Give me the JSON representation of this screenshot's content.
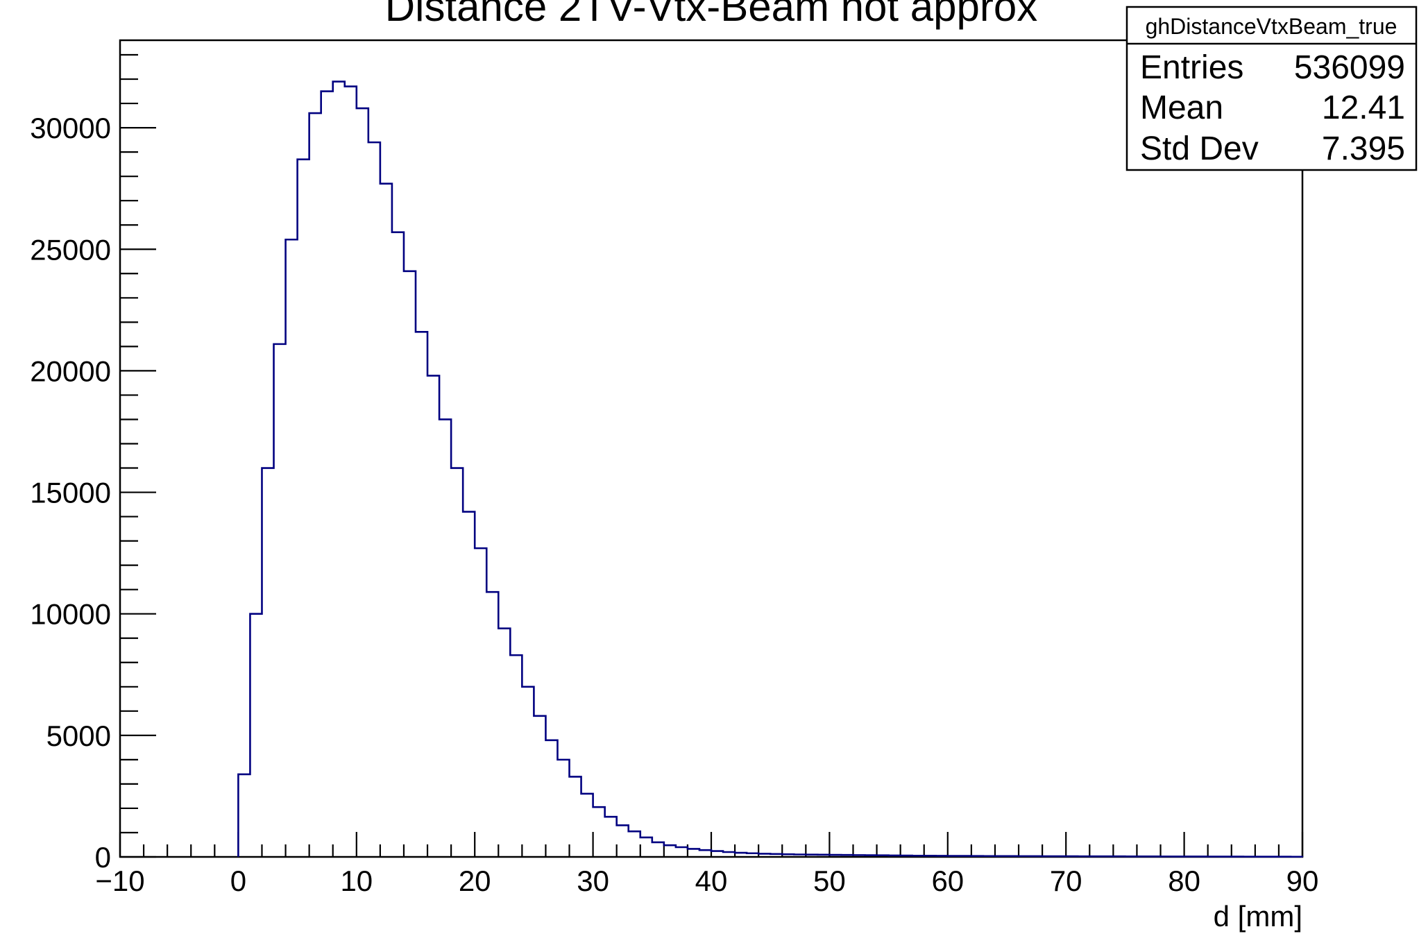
{
  "chart_data": {
    "type": "histogram",
    "title": "Distance 2TV-Vtx-Beam not approx",
    "xlabel": "d [mm]",
    "ylabel": "",
    "xlim": [
      -10,
      90
    ],
    "ylim": [
      0,
      33600
    ],
    "bin_width": 1,
    "first_bin_low_edge": 0,
    "x_ticks": [
      -10,
      0,
      10,
      20,
      30,
      40,
      50,
      60,
      70,
      80,
      90
    ],
    "y_ticks": [
      0,
      5000,
      10000,
      15000,
      20000,
      25000,
      30000
    ],
    "line_color": "#000080",
    "values": [
      3400,
      10000,
      16000,
      21100,
      25400,
      28700,
      30600,
      31500,
      31900,
      31700,
      30800,
      29400,
      27700,
      25700,
      24100,
      21600,
      19800,
      18000,
      16000,
      14200,
      12700,
      10900,
      9400,
      8300,
      7000,
      5800,
      4800,
      4000,
      3300,
      2600,
      2050,
      1650,
      1300,
      1050,
      800,
      600,
      480,
      400,
      330,
      280,
      240,
      200,
      170,
      150,
      130,
      120,
      110,
      100,
      95,
      90,
      85,
      80,
      75,
      70,
      65,
      60,
      55,
      50,
      48,
      45,
      42,
      40,
      38,
      36,
      35,
      33,
      32,
      30,
      28,
      27,
      26,
      25,
      24,
      23,
      22,
      21,
      20,
      19,
      18,
      17,
      16,
      15,
      14,
      13,
      12,
      11,
      10,
      9,
      8,
      7
    ]
  },
  "stats_box": {
    "name": "ghDistanceVtxBeam_true",
    "rows": [
      {
        "label": "Entries",
        "value": "536099"
      },
      {
        "label": "Mean",
        "value": "12.41"
      },
      {
        "label": "Std Dev",
        "value": "7.395"
      }
    ]
  }
}
